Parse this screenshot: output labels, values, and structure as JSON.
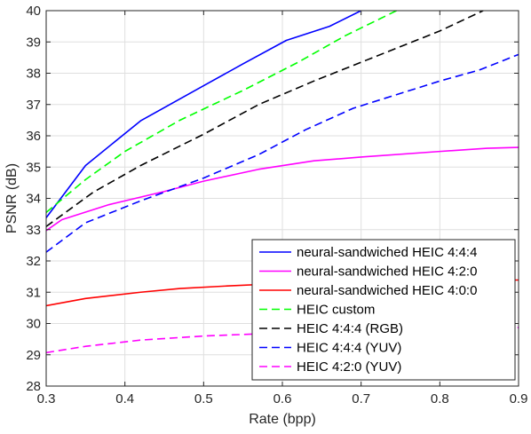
{
  "chart_data": {
    "type": "line",
    "xlabel": "Rate (bpp)",
    "ylabel": "PSNR (dB)",
    "xlim": [
      0.3,
      0.9
    ],
    "ylim": [
      28,
      40
    ],
    "xticks": [
      0.3,
      0.4,
      0.5,
      0.6,
      0.7,
      0.8,
      0.9
    ],
    "yticks": [
      28,
      29,
      30,
      31,
      32,
      33,
      34,
      35,
      36,
      37,
      38,
      39,
      40
    ],
    "xtick_labels": [
      "0.3",
      "0.4",
      "0.5",
      "0.6",
      "0.7",
      "0.8",
      "0.9"
    ],
    "ytick_labels": [
      "28",
      "29",
      "30",
      "31",
      "32",
      "33",
      "34",
      "35",
      "36",
      "37",
      "38",
      "39",
      "40"
    ],
    "grid": true,
    "legend_position": "bottom-right",
    "series": [
      {
        "name": "neural-sandwiched HEIC 4:4:4",
        "color": "#0000ff",
        "dash": "solid",
        "points": [
          [
            0.3,
            33.38
          ],
          [
            0.35,
            35.05
          ],
          [
            0.42,
            36.48
          ],
          [
            0.5,
            37.6
          ],
          [
            0.55,
            38.3
          ],
          [
            0.605,
            39.05
          ],
          [
            0.66,
            39.5
          ],
          [
            0.7,
            40.0
          ]
        ]
      },
      {
        "name": "neural-sandwiched HEIC 4:2:0",
        "color": "#ff00ff",
        "dash": "solid",
        "points": [
          [
            0.3,
            32.97
          ],
          [
            0.32,
            33.32
          ],
          [
            0.38,
            33.8
          ],
          [
            0.45,
            34.22
          ],
          [
            0.5,
            34.55
          ],
          [
            0.57,
            34.93
          ],
          [
            0.64,
            35.2
          ],
          [
            0.7,
            35.32
          ],
          [
            0.8,
            35.5
          ],
          [
            0.86,
            35.6
          ],
          [
            0.9,
            35.63
          ]
        ]
      },
      {
        "name": "neural-sandwiched HEIC 4:0:0",
        "color": "#ff0000",
        "dash": "solid",
        "points": [
          [
            0.3,
            30.57
          ],
          [
            0.35,
            30.8
          ],
          [
            0.42,
            31.0
          ],
          [
            0.47,
            31.12
          ],
          [
            0.53,
            31.2
          ],
          [
            0.6,
            31.28
          ],
          [
            0.7,
            31.33
          ],
          [
            0.8,
            31.37
          ],
          [
            0.9,
            31.39
          ]
        ]
      },
      {
        "name": "HEIC custom",
        "color": "#00ff00",
        "dash": "dashed",
        "points": [
          [
            0.3,
            33.55
          ],
          [
            0.35,
            34.6
          ],
          [
            0.4,
            35.5
          ],
          [
            0.47,
            36.5
          ],
          [
            0.55,
            37.45
          ],
          [
            0.62,
            38.35
          ],
          [
            0.68,
            39.2
          ],
          [
            0.745,
            40.0
          ]
        ]
      },
      {
        "name": "HEIC 4:4:4 (RGB)",
        "color": "#000000",
        "dash": "dashed",
        "points": [
          [
            0.3,
            33.1
          ],
          [
            0.36,
            34.2
          ],
          [
            0.42,
            35.05
          ],
          [
            0.5,
            36.05
          ],
          [
            0.57,
            37.0
          ],
          [
            0.64,
            37.75
          ],
          [
            0.72,
            38.55
          ],
          [
            0.8,
            39.35
          ],
          [
            0.855,
            40.0
          ]
        ]
      },
      {
        "name": "HEIC 4:4:4 (YUV)",
        "color": "#0000ff",
        "dash": "dashed",
        "points": [
          [
            0.3,
            32.28
          ],
          [
            0.35,
            33.22
          ],
          [
            0.42,
            33.92
          ],
          [
            0.5,
            34.65
          ],
          [
            0.57,
            35.4
          ],
          [
            0.63,
            36.2
          ],
          [
            0.69,
            36.88
          ],
          [
            0.8,
            37.75
          ],
          [
            0.85,
            38.1
          ],
          [
            0.9,
            38.6
          ]
        ]
      },
      {
        "name": "HEIC 4:2:0 (YUV)",
        "color": "#ff00ff",
        "dash": "dashed",
        "points": [
          [
            0.3,
            29.07
          ],
          [
            0.35,
            29.27
          ],
          [
            0.42,
            29.47
          ],
          [
            0.5,
            29.6
          ],
          [
            0.57,
            29.67
          ],
          [
            0.63,
            29.72
          ],
          [
            0.7,
            29.76
          ],
          [
            0.8,
            29.82
          ],
          [
            0.9,
            29.87
          ]
        ]
      }
    ]
  }
}
